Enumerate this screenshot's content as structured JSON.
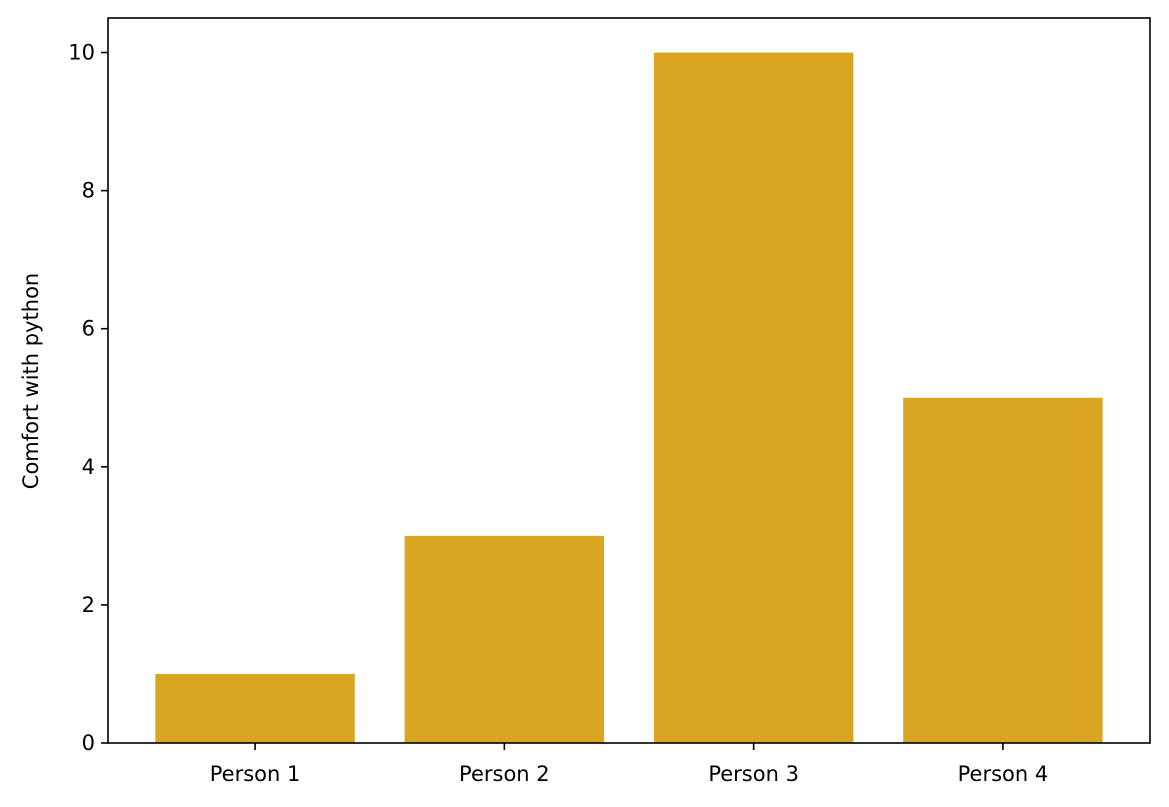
{
  "chart_data": {
    "type": "bar",
    "categories": [
      "Person 1",
      "Person 2",
      "Person 3",
      "Person 4"
    ],
    "values": [
      1,
      3,
      10,
      5
    ],
    "title": "",
    "xlabel": "",
    "ylabel": "Comfort with python",
    "ylim": [
      0,
      10.5
    ],
    "yticks": [
      0,
      2,
      4,
      6,
      8,
      10
    ],
    "bar_color": "#DAA520",
    "grid": false,
    "legend": "none"
  }
}
